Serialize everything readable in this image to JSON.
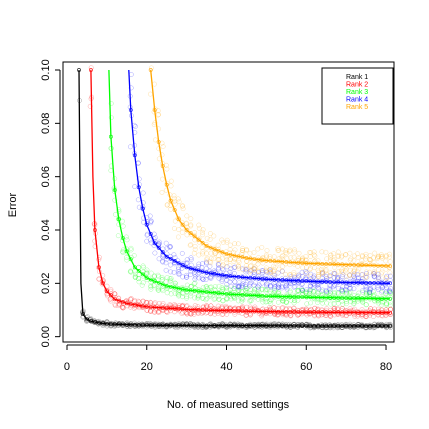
{
  "chart_data": {
    "type": "line",
    "title": "",
    "xlabel": "No. of measured settings",
    "ylabel": "Error",
    "xlim": [
      -1,
      82
    ],
    "ylim": [
      -0.002,
      0.103
    ],
    "x_ticks": [
      0,
      20,
      40,
      60,
      80
    ],
    "x_tick_labels": [
      "0",
      "20",
      "40",
      "60",
      "80"
    ],
    "y_ticks": [
      0.0,
      0.02,
      0.04,
      0.06,
      0.08,
      0.1
    ],
    "y_tick_labels": [
      "0.00",
      "0.02",
      "0.04",
      "0.06",
      "0.08",
      "0.10"
    ],
    "grid": false,
    "legend_position": "top-right",
    "series": [
      {
        "name": "Rank 1",
        "color": "#000000",
        "x": [
          3,
          3.5,
          4,
          5,
          6,
          8,
          10,
          15,
          20,
          30,
          40,
          50,
          60,
          70,
          81
        ],
        "y": [
          0.1,
          0.02,
          0.0085,
          0.0065,
          0.0058,
          0.0052,
          0.0048,
          0.0045,
          0.0043,
          0.0042,
          0.0041,
          0.0041,
          0.004,
          0.004,
          0.004
        ]
      },
      {
        "name": "Rank 2",
        "color": "#ff0000",
        "x": [
          6,
          6.5,
          7,
          8,
          9,
          10,
          12,
          15,
          20,
          30,
          40,
          50,
          60,
          70,
          81
        ],
        "y": [
          0.1,
          0.06,
          0.04,
          0.026,
          0.02,
          0.017,
          0.014,
          0.0125,
          0.0112,
          0.0102,
          0.0097,
          0.0094,
          0.0092,
          0.0091,
          0.009
        ]
      },
      {
        "name": "Rank 3",
        "color": "#00ff00",
        "x": [
          10.5,
          11,
          12,
          13,
          14,
          15,
          17,
          20,
          25,
          30,
          40,
          50,
          60,
          70,
          81
        ],
        "y": [
          0.1,
          0.075,
          0.055,
          0.044,
          0.037,
          0.032,
          0.026,
          0.022,
          0.019,
          0.0175,
          0.016,
          0.0152,
          0.0148,
          0.0145,
          0.0142
        ]
      },
      {
        "name": "Rank 4",
        "color": "#0000ff",
        "x": [
          15.5,
          16,
          17,
          18,
          19,
          20,
          22,
          25,
          30,
          35,
          40,
          50,
          60,
          70,
          81
        ],
        "y": [
          0.1,
          0.085,
          0.068,
          0.056,
          0.048,
          0.042,
          0.035,
          0.03,
          0.026,
          0.024,
          0.0228,
          0.0215,
          0.0208,
          0.0203,
          0.02
        ]
      },
      {
        "name": "Rank 5",
        "color": "#ffa500",
        "x": [
          21,
          22,
          23,
          24,
          25,
          26,
          28,
          30,
          35,
          40,
          45,
          50,
          60,
          70,
          81
        ],
        "y": [
          0.1,
          0.085,
          0.073,
          0.064,
          0.057,
          0.051,
          0.044,
          0.04,
          0.034,
          0.031,
          0.0295,
          0.0285,
          0.0275,
          0.027,
          0.0265
        ]
      }
    ]
  }
}
